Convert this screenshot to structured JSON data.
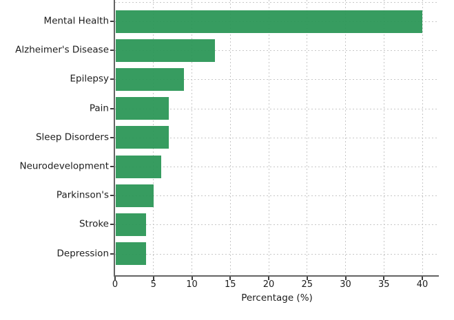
{
  "chart_data": {
    "type": "bar",
    "orientation": "horizontal",
    "title": "",
    "xlabel": "Percentage (%)",
    "ylabel": "",
    "categories": [
      "Mental Health",
      "Alzheimer's Disease",
      "Epilepsy",
      "Pain",
      "Sleep Disorders",
      "Neurodevelopment",
      "Parkinson's",
      "Stroke",
      "Depression"
    ],
    "values": [
      40,
      13,
      9,
      7,
      7,
      6,
      5,
      4,
      4
    ],
    "xticks": [
      0,
      5,
      10,
      15,
      20,
      25,
      30,
      35,
      40
    ],
    "xlim": [
      0,
      42
    ],
    "grid": "dotted, both axes",
    "legend_position": "none",
    "colors": {
      "bar": "#2b9656",
      "grid": "#c6c6c6",
      "spine": "#636363",
      "tick_mark": "#3d3d3d",
      "text": "#1c1c1c",
      "background": "#ffffff"
    }
  }
}
